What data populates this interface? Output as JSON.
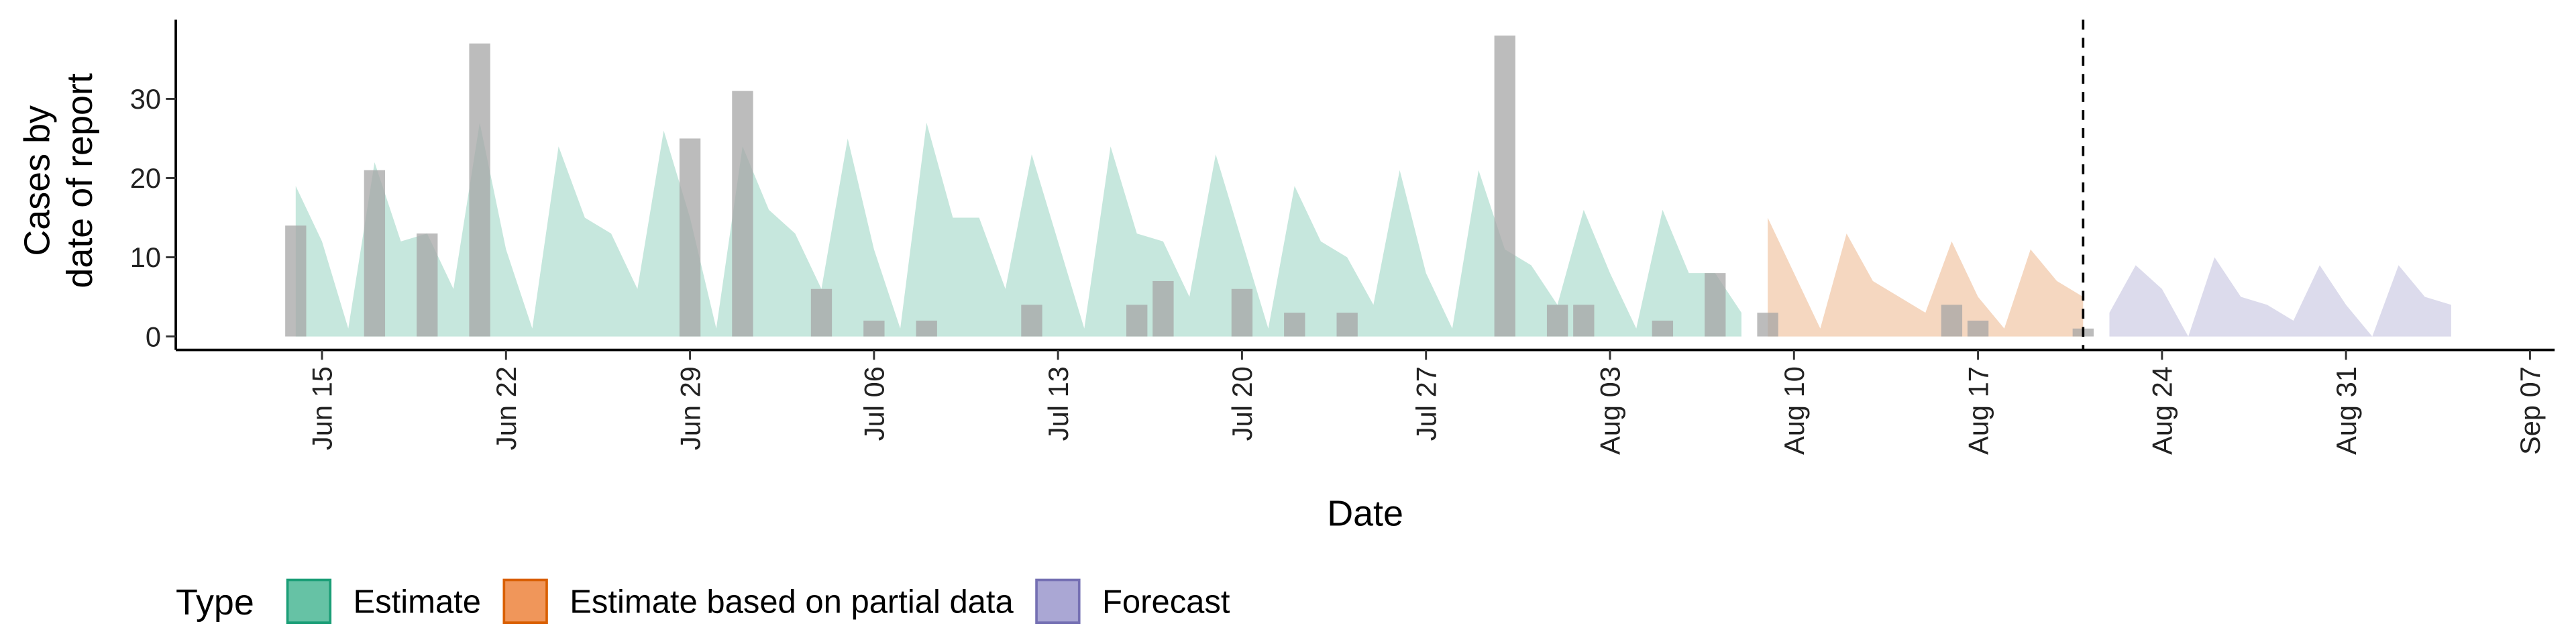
{
  "chart_data": {
    "type": "area",
    "xlabel": "Date",
    "ylabel": [
      "Cases by",
      "date of report"
    ],
    "legend_title": "Type",
    "xlim": [
      "06-09",
      "09-08"
    ],
    "xticks": [
      {
        "value": "06-15",
        "label": "Jun 15"
      },
      {
        "value": "06-22",
        "label": "Jun 22"
      },
      {
        "value": "06-29",
        "label": "Jun 29"
      },
      {
        "value": "07-06",
        "label": "Jul 06"
      },
      {
        "value": "07-13",
        "label": "Jul 13"
      },
      {
        "value": "07-20",
        "label": "Jul 20"
      },
      {
        "value": "07-27",
        "label": "Jul 27"
      },
      {
        "value": "08-03",
        "label": "Aug 03"
      },
      {
        "value": "08-10",
        "label": "Aug 10"
      },
      {
        "value": "08-17",
        "label": "Aug 17"
      },
      {
        "value": "08-24",
        "label": "Aug 24"
      },
      {
        "value": "08-31",
        "label": "Aug 31"
      },
      {
        "value": "09-07",
        "label": "Sep 07"
      }
    ],
    "ylim": [
      -1.7,
      40
    ],
    "yticks": [
      0,
      10,
      20,
      30
    ],
    "vline": "08-21",
    "bars": {
      "color": "#a6a6a6",
      "x": [
        "06-14",
        "06-17",
        "06-19",
        "06-21",
        "06-29",
        "07-01",
        "07-04",
        "07-06",
        "07-08",
        "07-12",
        "07-16",
        "07-17",
        "07-20",
        "07-22",
        "07-24",
        "07-30",
        "08-01",
        "08-02",
        "08-05",
        "08-07",
        "08-09",
        "08-16",
        "08-17",
        "08-21"
      ],
      "values": [
        14,
        21,
        13,
        37,
        25,
        31,
        6,
        2,
        2,
        4,
        4,
        7,
        6,
        3,
        3,
        38,
        4,
        4,
        2,
        8,
        3,
        4,
        2,
        1
      ]
    },
    "series": [
      {
        "name": "Estimate",
        "color": "#1b9e77",
        "legend_fill": "#66c2a5",
        "x": [
          "06-14",
          "06-15",
          "06-16",
          "06-17",
          "06-18",
          "06-19",
          "06-20",
          "06-21",
          "06-22",
          "06-23",
          "06-24",
          "06-25",
          "06-26",
          "06-27",
          "06-28",
          "06-29",
          "06-30",
          "07-01",
          "07-02",
          "07-03",
          "07-04",
          "07-05",
          "07-06",
          "07-07",
          "07-08",
          "07-09",
          "07-10",
          "07-11",
          "07-12",
          "07-13",
          "07-14",
          "07-15",
          "07-16",
          "07-17",
          "07-18",
          "07-19",
          "07-20",
          "07-21",
          "07-22",
          "07-23",
          "07-24",
          "07-25",
          "07-26",
          "07-27",
          "07-28",
          "07-29",
          "07-30",
          "07-31",
          "08-01",
          "08-02",
          "08-03",
          "08-04",
          "08-05",
          "08-06",
          "08-07",
          "08-08"
        ],
        "values": [
          19,
          12,
          1,
          22,
          12,
          13,
          6,
          27,
          11,
          1,
          24,
          15,
          13,
          6,
          26,
          15,
          1,
          24,
          16,
          13,
          6,
          25,
          11,
          1,
          27,
          15,
          15,
          6,
          23,
          12,
          1,
          24,
          13,
          12,
          5,
          23,
          12,
          1,
          19,
          12,
          10,
          4,
          21,
          8,
          1,
          21,
          11,
          9,
          4,
          16,
          8,
          1,
          16,
          8,
          8,
          3
        ]
      },
      {
        "name": "Estimate based on partial data",
        "color": "#d95f02",
        "legend_fill": "#f0965a",
        "x": [
          "08-09",
          "08-10",
          "08-11",
          "08-12",
          "08-13",
          "08-14",
          "08-15",
          "08-16",
          "08-17",
          "08-18",
          "08-19",
          "08-20",
          "08-21"
        ],
        "values": [
          15,
          8,
          1,
          13,
          7,
          5,
          3,
          12,
          5,
          1,
          11,
          7,
          5
        ]
      },
      {
        "name": "Forecast",
        "color": "#7570b3",
        "legend_fill": "#aaa7d4",
        "x": [
          "08-22",
          "08-23",
          "08-24",
          "08-25",
          "08-26",
          "08-27",
          "08-28",
          "08-29",
          "08-30",
          "08-31",
          "09-01",
          "09-02",
          "09-03",
          "09-04"
        ],
        "values": [
          3,
          9,
          6,
          0,
          10,
          5,
          4,
          2,
          9,
          4,
          0,
          9,
          5,
          4
        ]
      }
    ]
  }
}
